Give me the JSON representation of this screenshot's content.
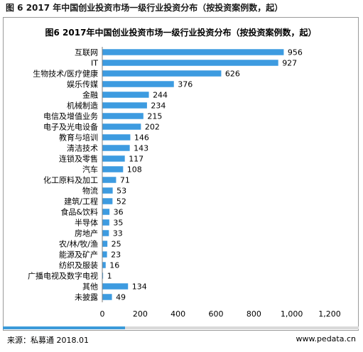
{
  "header": {
    "title": "图 6 2017 年中国创业投资市场一级行业投资分布（按投资案例数，起）"
  },
  "footer": {
    "source": "来源：私募通 2018.01",
    "website": "www.pedata.cn"
  },
  "colors": {
    "bar": "#3d9be0",
    "accent": "#3b9ad9",
    "footer_bar": "#d9d9d9"
  },
  "chart_data": {
    "type": "bar",
    "orientation": "horizontal",
    "title": "图6 2017年中国创业投资市场一级行业投资分布（按投资案例数，起）",
    "categories": [
      "互联网",
      "IT",
      "生物技术/医疗健康",
      "娱乐传媒",
      "金融",
      "机械制造",
      "电信及增值业务",
      "电子及光电设备",
      "教育与培训",
      "清洁技术",
      "连锁及零售",
      "汽车",
      "化工原料及加工",
      "物流",
      "建筑/工程",
      "食品&饮料",
      "半导体",
      "房地产",
      "农/林/牧/渔",
      "能源及矿产",
      "纺织及服装",
      "广播电视及数字电视",
      "其他",
      "未披露"
    ],
    "values": [
      956,
      927,
      626,
      376,
      244,
      234,
      215,
      202,
      146,
      143,
      117,
      108,
      71,
      53,
      52,
      36,
      35,
      33,
      25,
      23,
      16,
      1,
      134,
      49
    ],
    "xlim": [
      0,
      1200
    ],
    "xticks": [
      "0",
      "200",
      "400",
      "600",
      "800",
      "1,000",
      "1,200"
    ],
    "xlabel": "",
    "ylabel": "",
    "data_labels": true,
    "grid": false
  }
}
